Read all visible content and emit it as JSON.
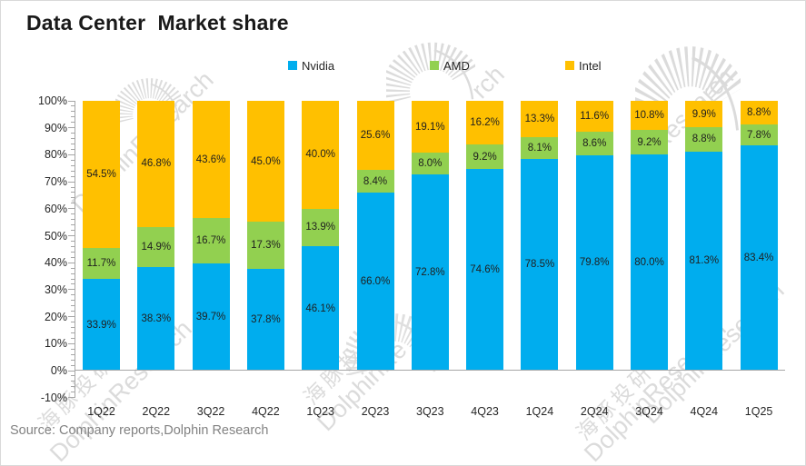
{
  "header": {
    "title": "Data Center  Market share"
  },
  "footer": {
    "source": "Source: Company reports,Dolphin Research"
  },
  "watermarks": {
    "color": "#dadada",
    "brand_text": "DolphinResearch",
    "brand_fragment": "DolphinRe",
    "fragment_rch": "rch",
    "fragment_research": "Research",
    "cn_text": "海豚投研"
  },
  "chart_data": {
    "type": "bar",
    "stacked": true,
    "title": "Data Center  Market share",
    "xlabel": "",
    "ylabel": "",
    "categories": [
      "1Q22",
      "2Q22",
      "3Q22",
      "4Q22",
      "1Q23",
      "2Q23",
      "3Q23",
      "4Q23",
      "1Q24",
      "2Q24",
      "3Q24",
      "4Q24",
      "1Q25"
    ],
    "series": [
      {
        "name": "Nvidia",
        "color": "#00adee",
        "values": [
          33.9,
          38.3,
          39.7,
          37.8,
          46.1,
          66.0,
          72.8,
          74.6,
          78.5,
          79.8,
          80.0,
          81.3,
          83.4
        ]
      },
      {
        "name": "AMD",
        "color": "#92d050",
        "values": [
          11.7,
          14.9,
          16.7,
          17.3,
          13.9,
          8.4,
          8.0,
          9.2,
          8.1,
          8.6,
          9.2,
          8.8,
          7.8
        ]
      },
      {
        "name": "Intel",
        "color": "#ffc000",
        "values": [
          54.5,
          46.8,
          43.6,
          45.0,
          40.0,
          25.6,
          19.1,
          16.2,
          13.3,
          11.6,
          10.8,
          9.9,
          8.8
        ]
      }
    ],
    "value_label_suffix": "%",
    "ylim": [
      -10,
      100
    ],
    "ytick_step": 10,
    "ytick_labels": [
      "100%",
      "90%",
      "80%",
      "70%",
      "60%",
      "50%",
      "40%",
      "30%",
      "20%",
      "10%",
      "0%",
      "-10%"
    ],
    "grid": false,
    "legend_position": "top"
  }
}
